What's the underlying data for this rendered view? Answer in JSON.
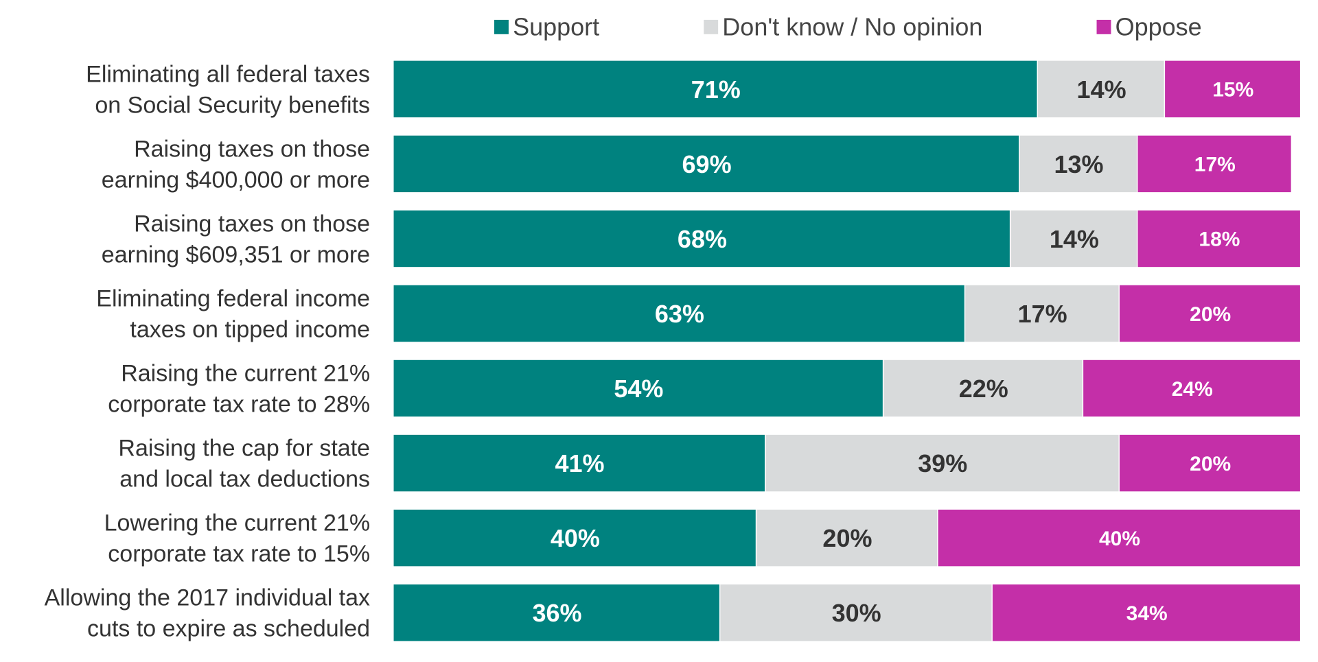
{
  "chart_data": {
    "type": "bar",
    "orientation": "horizontal",
    "stacked": true,
    "percent_stacked": true,
    "xlim": [
      0,
      100
    ],
    "grid": false,
    "legend_position": "top",
    "categories": [
      "Eliminating all federal taxes on Social Security benefits",
      "Raising taxes on those earning $400,000 or more",
      "Raising taxes on those earning $609,351 or more",
      "Eliminating federal income taxes on tipped income",
      "Raising the current 21% corporate tax rate to 28%",
      "Raising the cap for state and local tax deductions",
      "Lowering the current 21% corporate tax rate to 15%",
      "Allowing the 2017 individual tax cuts to expire as scheduled"
    ],
    "category_lines": [
      [
        "Eliminating all federal taxes",
        "on Social Security benefits"
      ],
      [
        "Raising taxes on those",
        "earning $400,000 or more"
      ],
      [
        "Raising taxes on those",
        "earning $609,351 or more"
      ],
      [
        "Eliminating federal income",
        "taxes on tipped income"
      ],
      [
        "Raising the current 21%",
        "corporate tax rate to 28%"
      ],
      [
        "Raising the cap for state",
        "and local tax deductions"
      ],
      [
        "Lowering the current 21%",
        "corporate tax rate to 15%"
      ],
      [
        "Allowing the 2017 individual tax",
        "cuts to expire as scheduled"
      ]
    ],
    "series": [
      {
        "name": "Support",
        "color": "#00827f",
        "label_color": "#ffffff",
        "values": [
          71,
          69,
          68,
          63,
          54,
          41,
          40,
          36
        ],
        "labels": [
          "71%",
          "69%",
          "68%",
          "63%",
          "54%",
          "41%",
          "40%",
          "36%"
        ]
      },
      {
        "name": "Don't know / No opinion",
        "color": "#d8dadb",
        "label_color": "#333333",
        "values": [
          14,
          13,
          14,
          17,
          22,
          39,
          20,
          30
        ],
        "labels": [
          "14%",
          "13%",
          "14%",
          "17%",
          "22%",
          "39%",
          "20%",
          "30%"
        ]
      },
      {
        "name": "Oppose",
        "color": "#c42fa8",
        "label_color": "#ffffff",
        "values": [
          15,
          17,
          18,
          20,
          24,
          20,
          40,
          34
        ],
        "labels": [
          "15%",
          "17%",
          "18%",
          "20%",
          "24%",
          "20%",
          "40%",
          "34%"
        ]
      }
    ]
  }
}
